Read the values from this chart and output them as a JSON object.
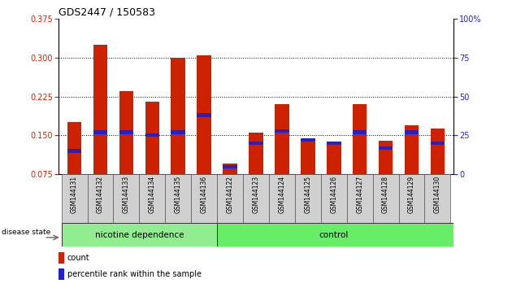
{
  "title": "GDS2447 / 150583",
  "samples": [
    "GSM144131",
    "GSM144132",
    "GSM144133",
    "GSM144134",
    "GSM144135",
    "GSM144136",
    "GSM144122",
    "GSM144123",
    "GSM144124",
    "GSM144125",
    "GSM144126",
    "GSM144127",
    "GSM144128",
    "GSM144129",
    "GSM144130"
  ],
  "count_values": [
    0.175,
    0.325,
    0.235,
    0.215,
    0.3,
    0.305,
    0.095,
    0.155,
    0.21,
    0.138,
    0.138,
    0.21,
    0.14,
    0.17,
    0.163
  ],
  "percentile_values": [
    15,
    27,
    27,
    25,
    27,
    38,
    5,
    20,
    28,
    22,
    20,
    27,
    17,
    27,
    20
  ],
  "ymin": 0.075,
  "ymax": 0.375,
  "yright_min": 0,
  "yright_max": 100,
  "yticks_left": [
    0.075,
    0.15,
    0.225,
    0.3,
    0.375
  ],
  "yticks_right": [
    0,
    25,
    50,
    75,
    100
  ],
  "bar_color": "#cc2200",
  "percentile_color": "#2222cc",
  "n_nicotine": 6,
  "n_control": 9,
  "nicotine_label": "nicotine dependence",
  "control_label": "control",
  "disease_state_label": "disease state",
  "group_color_nicotine": "#90ee90",
  "group_color_control": "#66ee66",
  "legend_count_label": "count",
  "legend_percentile_label": "percentile rank within the sample",
  "tick_label_color_left": "#cc2200",
  "tick_label_color_right": "#2222cc",
  "xtick_box_color": "#d0d0d0"
}
